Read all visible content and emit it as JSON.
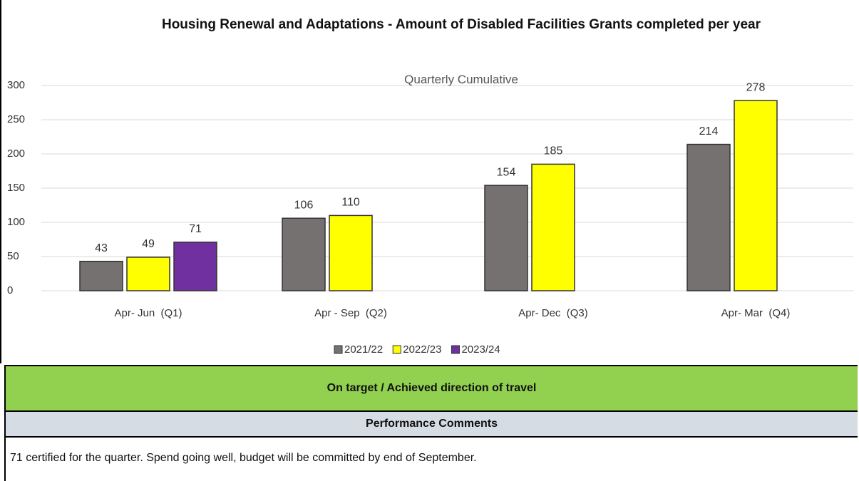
{
  "chart_data": {
    "type": "bar",
    "title": "Housing Renewal and Adaptations - Amount of Disabled Facilities Grants completed per year",
    "subtitle": "Quarterly Cumulative",
    "categories": [
      "Apr- Jun  (Q1)",
      "Apr - Sep  (Q2)",
      "Apr- Dec  (Q3)",
      "Apr- Mar  (Q4)"
    ],
    "series": [
      {
        "name": "2021/22",
        "color": "#767171",
        "values": [
          43,
          106,
          154,
          214
        ]
      },
      {
        "name": "2022/23",
        "color": "#ffff00",
        "values": [
          49,
          110,
          185,
          278
        ]
      },
      {
        "name": "2023/24",
        "color": "#7030a0",
        "values": [
          71,
          null,
          null,
          null
        ]
      }
    ],
    "ylim": [
      0,
      300
    ],
    "yticks": [
      0,
      50,
      100,
      150,
      200,
      250,
      300
    ],
    "grid": true,
    "legend": "bottom"
  },
  "status": "On target / Achieved direction of travel",
  "comments_header": "Performance Comments",
  "comment": "71 certified for the quarter. Spend going well, budget will be committed by end of September."
}
